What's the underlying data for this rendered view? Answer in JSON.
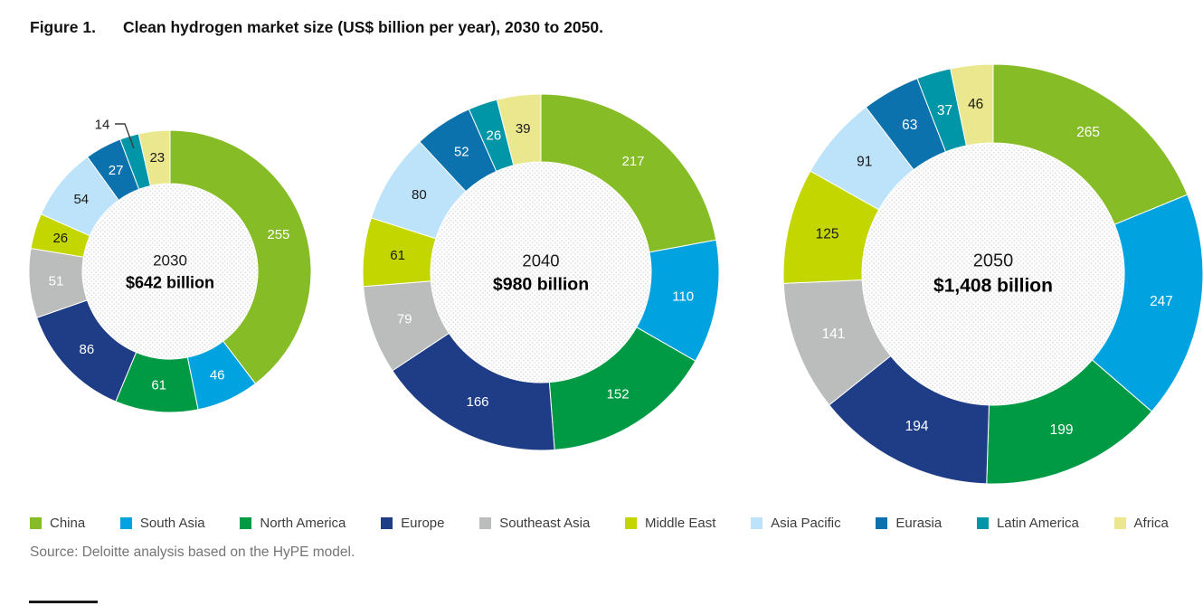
{
  "title": {
    "prefix": "Figure 1.",
    "text": "Clean hydrogen market size (US$ billion per year), 2030 to 2050."
  },
  "source": "Source: Deloitte analysis based on the HyPE model.",
  "chart_data": {
    "type": "pie",
    "variant": "donut-small-multiples",
    "title": "Clean hydrogen market size (US$ billion per year), 2030 to 2050",
    "units": "US$ billion per year",
    "legend_position": "bottom",
    "categories": [
      "China",
      "South Asia",
      "North America",
      "Europe",
      "Southeast Asia",
      "Middle East",
      "Asia Pacific",
      "Eurasia",
      "Latin America",
      "Africa"
    ],
    "regions": [
      {
        "name": "China",
        "color": "#86BC25",
        "label_color": "#FFFFFF"
      },
      {
        "name": "South Asia",
        "color": "#00A3E0",
        "label_color": "#FFFFFF"
      },
      {
        "name": "North America",
        "color": "#009A44",
        "label_color": "#FFFFFF"
      },
      {
        "name": "Europe",
        "color": "#1F3D87",
        "label_color": "#FFFFFF"
      },
      {
        "name": "Southeast Asia",
        "color": "#BBBCBC",
        "label_color": "#FFFFFF"
      },
      {
        "name": "Middle East",
        "color": "#C4D600",
        "label_color": "#1A1A1A"
      },
      {
        "name": "Asia Pacific",
        "color": "#BCE3F9",
        "label_color": "#1A1A1A"
      },
      {
        "name": "Eurasia",
        "color": "#0B72AE",
        "label_color": "#FFFFFF"
      },
      {
        "name": "Latin America",
        "color": "#0096A8",
        "label_color": "#FFFFFF"
      },
      {
        "name": "Africa",
        "color": "#EBE78E",
        "label_color": "#1A1A1A"
      }
    ],
    "charts": [
      {
        "year": "2030",
        "center_label": "$642 billion",
        "total": 642,
        "values": [
          255,
          46,
          61,
          86,
          51,
          26,
          54,
          27,
          14,
          23
        ],
        "callout_region": "Latin America"
      },
      {
        "year": "2040",
        "center_label": "$980 billion",
        "total": 980,
        "values": [
          217,
          110,
          152,
          166,
          79,
          61,
          80,
          52,
          26,
          39
        ]
      },
      {
        "year": "2050",
        "center_label": "$1,408 billion",
        "total": 1408,
        "values": [
          265,
          247,
          199,
          194,
          141,
          125,
          91,
          63,
          37,
          46
        ]
      }
    ]
  }
}
